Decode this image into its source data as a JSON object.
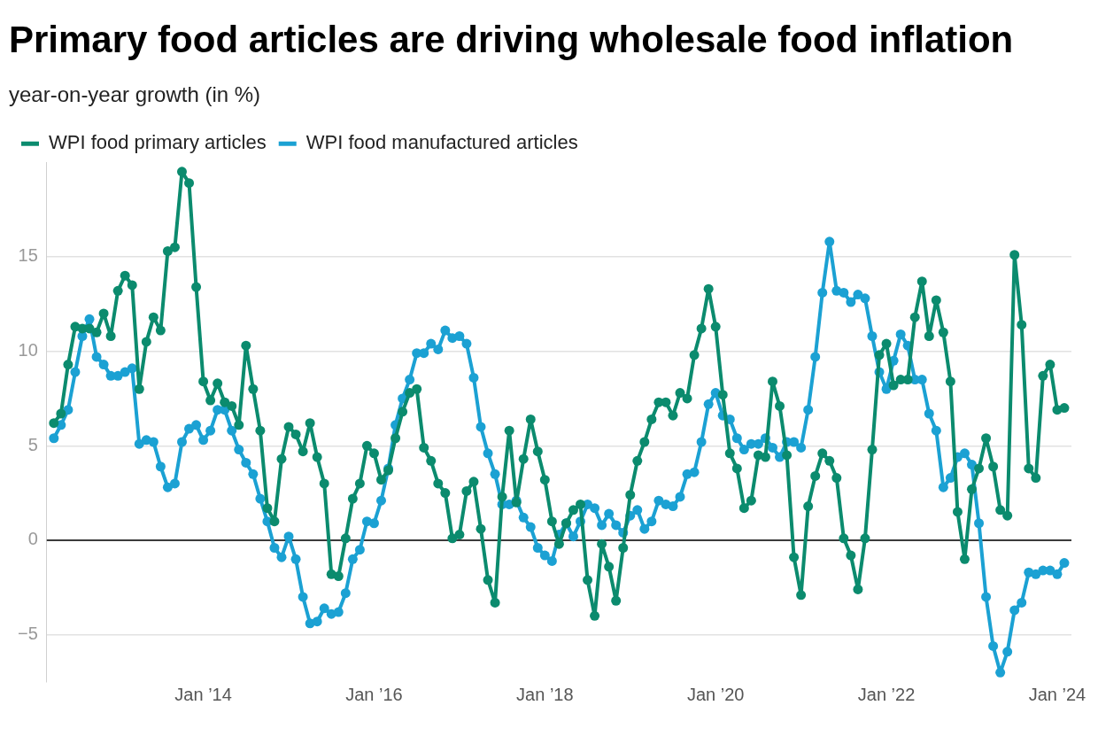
{
  "chart_data": {
    "type": "line",
    "title": "Primary food articles are driving wholesale food inflation",
    "subtitle": "year-on-year growth (in %)",
    "x": [
      "2012-04",
      "2012-05",
      "2012-06",
      "2012-07",
      "2012-08",
      "2012-09",
      "2012-10",
      "2012-11",
      "2012-12",
      "2013-01",
      "2013-02",
      "2013-03",
      "2013-04",
      "2013-05",
      "2013-06",
      "2013-07",
      "2013-08",
      "2013-09",
      "2013-10",
      "2013-11",
      "2013-12",
      "2014-01",
      "2014-02",
      "2014-03",
      "2014-04",
      "2014-05",
      "2014-06",
      "2014-07",
      "2014-08",
      "2014-09",
      "2014-10",
      "2014-11",
      "2014-12",
      "2015-01",
      "2015-02",
      "2015-03",
      "2015-04",
      "2015-05",
      "2015-06",
      "2015-07",
      "2015-08",
      "2015-09",
      "2015-10",
      "2015-11",
      "2015-12",
      "2016-01",
      "2016-02",
      "2016-03",
      "2016-04",
      "2016-05",
      "2016-06",
      "2016-07",
      "2016-08",
      "2016-09",
      "2016-10",
      "2016-11",
      "2016-12",
      "2017-01",
      "2017-02",
      "2017-03",
      "2017-04",
      "2017-05",
      "2017-06",
      "2017-07",
      "2017-08",
      "2017-09",
      "2017-10",
      "2017-11",
      "2017-12",
      "2018-01",
      "2018-02",
      "2018-03",
      "2018-04",
      "2018-05",
      "2018-06",
      "2018-07",
      "2018-08",
      "2018-09",
      "2018-10",
      "2018-11",
      "2018-12",
      "2019-01",
      "2019-02",
      "2019-03",
      "2019-04",
      "2019-05",
      "2019-06",
      "2019-07",
      "2019-08",
      "2019-09",
      "2019-10",
      "2019-11",
      "2019-12",
      "2020-01",
      "2020-02",
      "2020-03",
      "2020-04",
      "2020-05",
      "2020-06",
      "2020-07",
      "2020-08",
      "2020-09",
      "2020-10",
      "2020-11",
      "2020-12",
      "2021-01",
      "2021-02",
      "2021-03",
      "2021-04",
      "2021-05",
      "2021-06",
      "2021-07",
      "2021-08",
      "2021-09",
      "2021-10",
      "2021-11",
      "2021-12",
      "2022-01",
      "2022-02",
      "2022-03",
      "2022-04",
      "2022-05",
      "2022-06",
      "2022-07",
      "2022-08",
      "2022-09",
      "2022-10",
      "2022-11",
      "2022-12",
      "2023-01",
      "2023-02",
      "2023-03",
      "2023-04",
      "2023-05",
      "2023-06",
      "2023-07",
      "2023-08",
      "2023-09",
      "2023-10",
      "2023-11",
      "2023-12",
      "2024-01",
      "2024-02"
    ],
    "series": [
      {
        "name": "WPI food primary articles",
        "color": "#0b8b6e",
        "values": [
          6.2,
          6.7,
          9.3,
          11.3,
          11.2,
          11.2,
          11.0,
          12.0,
          10.8,
          13.2,
          14.0,
          13.5,
          8.0,
          10.5,
          11.8,
          11.1,
          15.3,
          15.5,
          19.5,
          18.9,
          13.4,
          8.4,
          7.4,
          8.3,
          7.3,
          7.1,
          6.1,
          10.3,
          8.0,
          5.8,
          1.7,
          1.0,
          4.3,
          6.0,
          5.6,
          4.7,
          6.2,
          4.4,
          3.0,
          -1.8,
          -1.9,
          0.1,
          2.2,
          3.0,
          5.0,
          4.6,
          3.2,
          3.7,
          5.4,
          6.8,
          7.8,
          8.0,
          4.9,
          4.2,
          3.0,
          2.5,
          0.1,
          0.3,
          2.6,
          3.1,
          0.6,
          -2.1,
          -3.3,
          2.3,
          5.8,
          2.0,
          4.3,
          6.4,
          4.7,
          3.2,
          1.0,
          -0.2,
          0.9,
          1.6,
          1.9,
          -2.1,
          -4.0,
          -0.2,
          -1.4,
          -3.2,
          -0.4,
          2.4,
          4.2,
          5.2,
          6.4,
          7.3,
          7.3,
          6.6,
          7.8,
          7.5,
          9.8,
          11.2,
          13.3,
          11.3,
          7.7,
          4.6,
          3.8,
          1.7,
          2.1,
          4.5,
          4.4,
          8.4,
          7.1,
          4.5,
          -0.9,
          -2.9,
          1.8,
          3.4,
          4.6,
          4.2,
          3.3,
          0.1,
          -0.8,
          -2.6,
          0.1,
          4.8,
          9.8,
          10.4,
          8.2,
          8.5,
          8.5,
          11.8,
          13.7,
          10.8,
          12.7,
          11.0,
          8.4,
          1.5,
          -1.0,
          2.7,
          3.8,
          5.4,
          3.9,
          1.6,
          1.3,
          15.1,
          11.4,
          3.8,
          3.3,
          8.7,
          9.3,
          6.9,
          7.0
        ]
      },
      {
        "name": "WPI food manufactured articles",
        "color": "#1ba1d3",
        "values": [
          5.4,
          6.1,
          6.9,
          8.9,
          10.8,
          11.7,
          9.7,
          9.3,
          8.7,
          8.7,
          8.9,
          9.1,
          5.1,
          5.3,
          5.2,
          3.9,
          2.8,
          3.0,
          5.2,
          5.9,
          6.1,
          5.3,
          5.8,
          6.9,
          6.9,
          5.8,
          4.8,
          4.1,
          3.5,
          2.2,
          1.0,
          -0.4,
          -0.9,
          0.2,
          -1.0,
          -3.0,
          -4.4,
          -4.3,
          -3.6,
          -3.9,
          -3.8,
          -2.8,
          -1.0,
          -0.5,
          1.0,
          0.9,
          2.1,
          3.8,
          6.1,
          7.5,
          8.5,
          9.9,
          9.9,
          10.4,
          10.1,
          11.1,
          10.7,
          10.8,
          10.4,
          8.6,
          6.0,
          4.6,
          3.5,
          1.9,
          1.9,
          2.1,
          1.2,
          0.7,
          -0.4,
          -0.8,
          -1.1,
          0.3,
          0.9,
          0.2,
          1.0,
          1.9,
          1.7,
          0.8,
          1.4,
          0.8,
          0.4,
          1.3,
          1.6,
          0.6,
          1.0,
          2.1,
          1.9,
          1.8,
          2.3,
          3.5,
          3.6,
          5.2,
          7.2,
          7.8,
          6.6,
          6.4,
          5.4,
          4.8,
          5.1,
          5.1,
          5.4,
          4.9,
          4.4,
          5.2,
          5.2,
          4.9,
          6.9,
          9.7,
          13.1,
          15.8,
          13.2,
          13.1,
          12.6,
          13.0,
          12.8,
          10.8,
          8.9,
          8.0,
          9.5,
          10.9,
          10.3,
          8.5,
          8.5,
          6.7,
          5.8,
          2.8,
          3.3,
          4.4,
          4.6,
          4.0,
          0.9,
          -3.0,
          -5.6,
          -7.0,
          -5.9,
          -3.7,
          -3.3,
          -1.7,
          -1.8,
          -1.6,
          -1.6,
          -1.8,
          -1.2
        ]
      }
    ],
    "xlim": [
      "2012-03",
      "2024-03"
    ],
    "xticks": [
      {
        "value": "2014-01",
        "label": "Jan ’14"
      },
      {
        "value": "2016-01",
        "label": "Jan ’16"
      },
      {
        "value": "2018-01",
        "label": "Jan ’18"
      },
      {
        "value": "2020-01",
        "label": "Jan ’20"
      },
      {
        "value": "2022-01",
        "label": "Jan ’22"
      },
      {
        "value": "2024-01",
        "label": "Jan ’24"
      }
    ],
    "ylim": [
      -7.5,
      20
    ],
    "yticks": [
      {
        "value": -5,
        "label": "−5"
      },
      0,
      5,
      10,
      15
    ],
    "ref_lines": [
      {
        "axis": "y",
        "value": 0,
        "color": "#000000"
      }
    ],
    "grid": "y",
    "legend": "top left",
    "marker": "circle",
    "line_style": "solid"
  }
}
